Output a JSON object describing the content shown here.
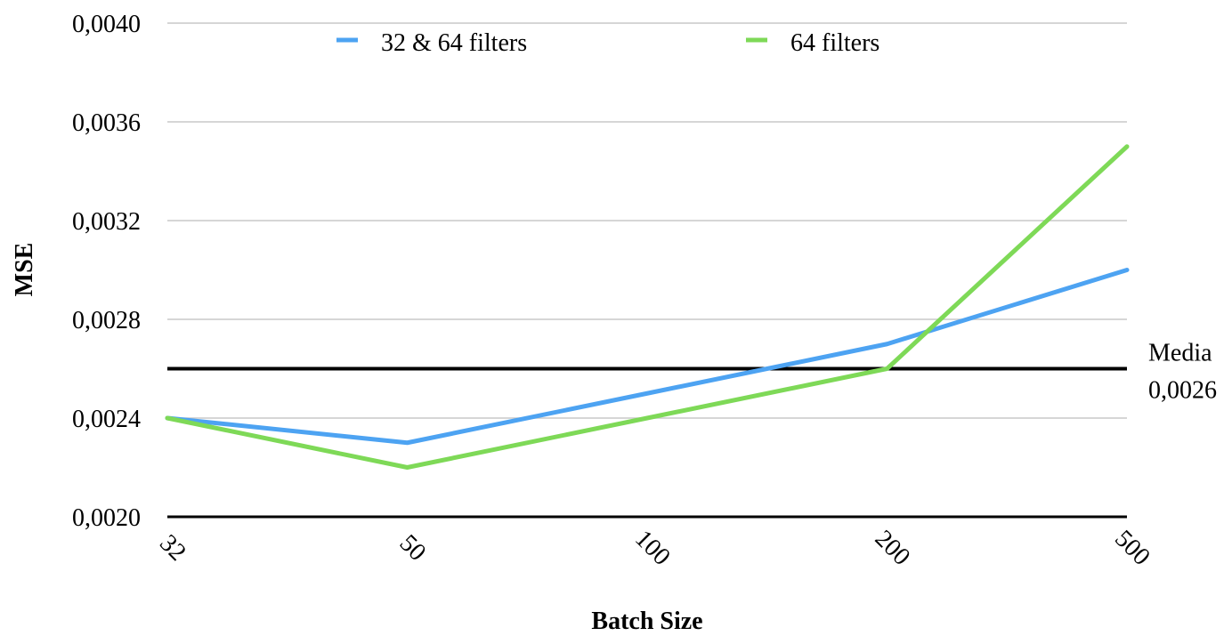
{
  "chart_data": {
    "type": "line",
    "title": "",
    "xlabel": "Batch Size",
    "ylabel": "MSE",
    "categories": [
      "32",
      "50",
      "100",
      "200",
      "500"
    ],
    "series": [
      {
        "name": "32 & 64 filters",
        "color": "#4da3f2",
        "values": [
          0.0024,
          0.0023,
          0.0025,
          0.0027,
          0.003
        ]
      },
      {
        "name": "64 filters",
        "color": "#7ed957",
        "values": [
          0.0024,
          0.0022,
          0.0024,
          0.0026,
          0.0035
        ]
      }
    ],
    "ylim": [
      0.002,
      0.004
    ],
    "yticks": [
      0.002,
      0.0024,
      0.0028,
      0.0032,
      0.0036,
      0.004
    ],
    "ytick_labels": [
      "0,0020",
      "0,0024",
      "0,0028",
      "0,0032",
      "0,0036",
      "0,0040"
    ],
    "reference_line": {
      "value": 0.0026,
      "label_line1": "Media",
      "label_line2": "0,0026",
      "color": "#000000"
    },
    "grid": true,
    "grid_color": "#c8c8c8",
    "legend_position": "top"
  }
}
